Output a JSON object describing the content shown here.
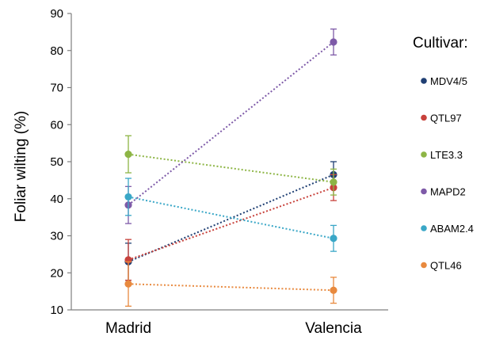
{
  "chart_data": {
    "type": "line",
    "categories": [
      "Madrid",
      "Valencia"
    ],
    "ylabel": "Foliar wilting (%)",
    "ylim": [
      10,
      90
    ],
    "yticks": [
      10,
      20,
      30,
      40,
      50,
      60,
      70,
      80,
      90
    ],
    "grid": false,
    "legend": {
      "title": "Cultivar:",
      "position": "right"
    },
    "series": [
      {
        "name": "MDV4/5",
        "color": "#1f3f73",
        "values": [
          23.0,
          46.5
        ],
        "errors": [
          5.0,
          3.5
        ]
      },
      {
        "name": "QTL97",
        "color": "#c8423c",
        "values": [
          23.5,
          43.0
        ],
        "errors": [
          5.5,
          3.5
        ]
      },
      {
        "name": "LTE3.3",
        "color": "#8db545",
        "values": [
          52.0,
          44.5
        ],
        "errors": [
          5.0,
          3.5
        ]
      },
      {
        "name": "MAPD2",
        "color": "#7e5aa8",
        "values": [
          38.3,
          82.3
        ],
        "errors": [
          5.0,
          3.5
        ]
      },
      {
        "name": "ABAM2.4",
        "color": "#3aa7c7",
        "values": [
          40.5,
          29.3
        ],
        "errors": [
          5.0,
          3.5
        ]
      },
      {
        "name": "QTL46",
        "color": "#e8893e",
        "values": [
          17.0,
          15.3
        ],
        "errors": [
          6.0,
          3.5
        ]
      }
    ]
  }
}
